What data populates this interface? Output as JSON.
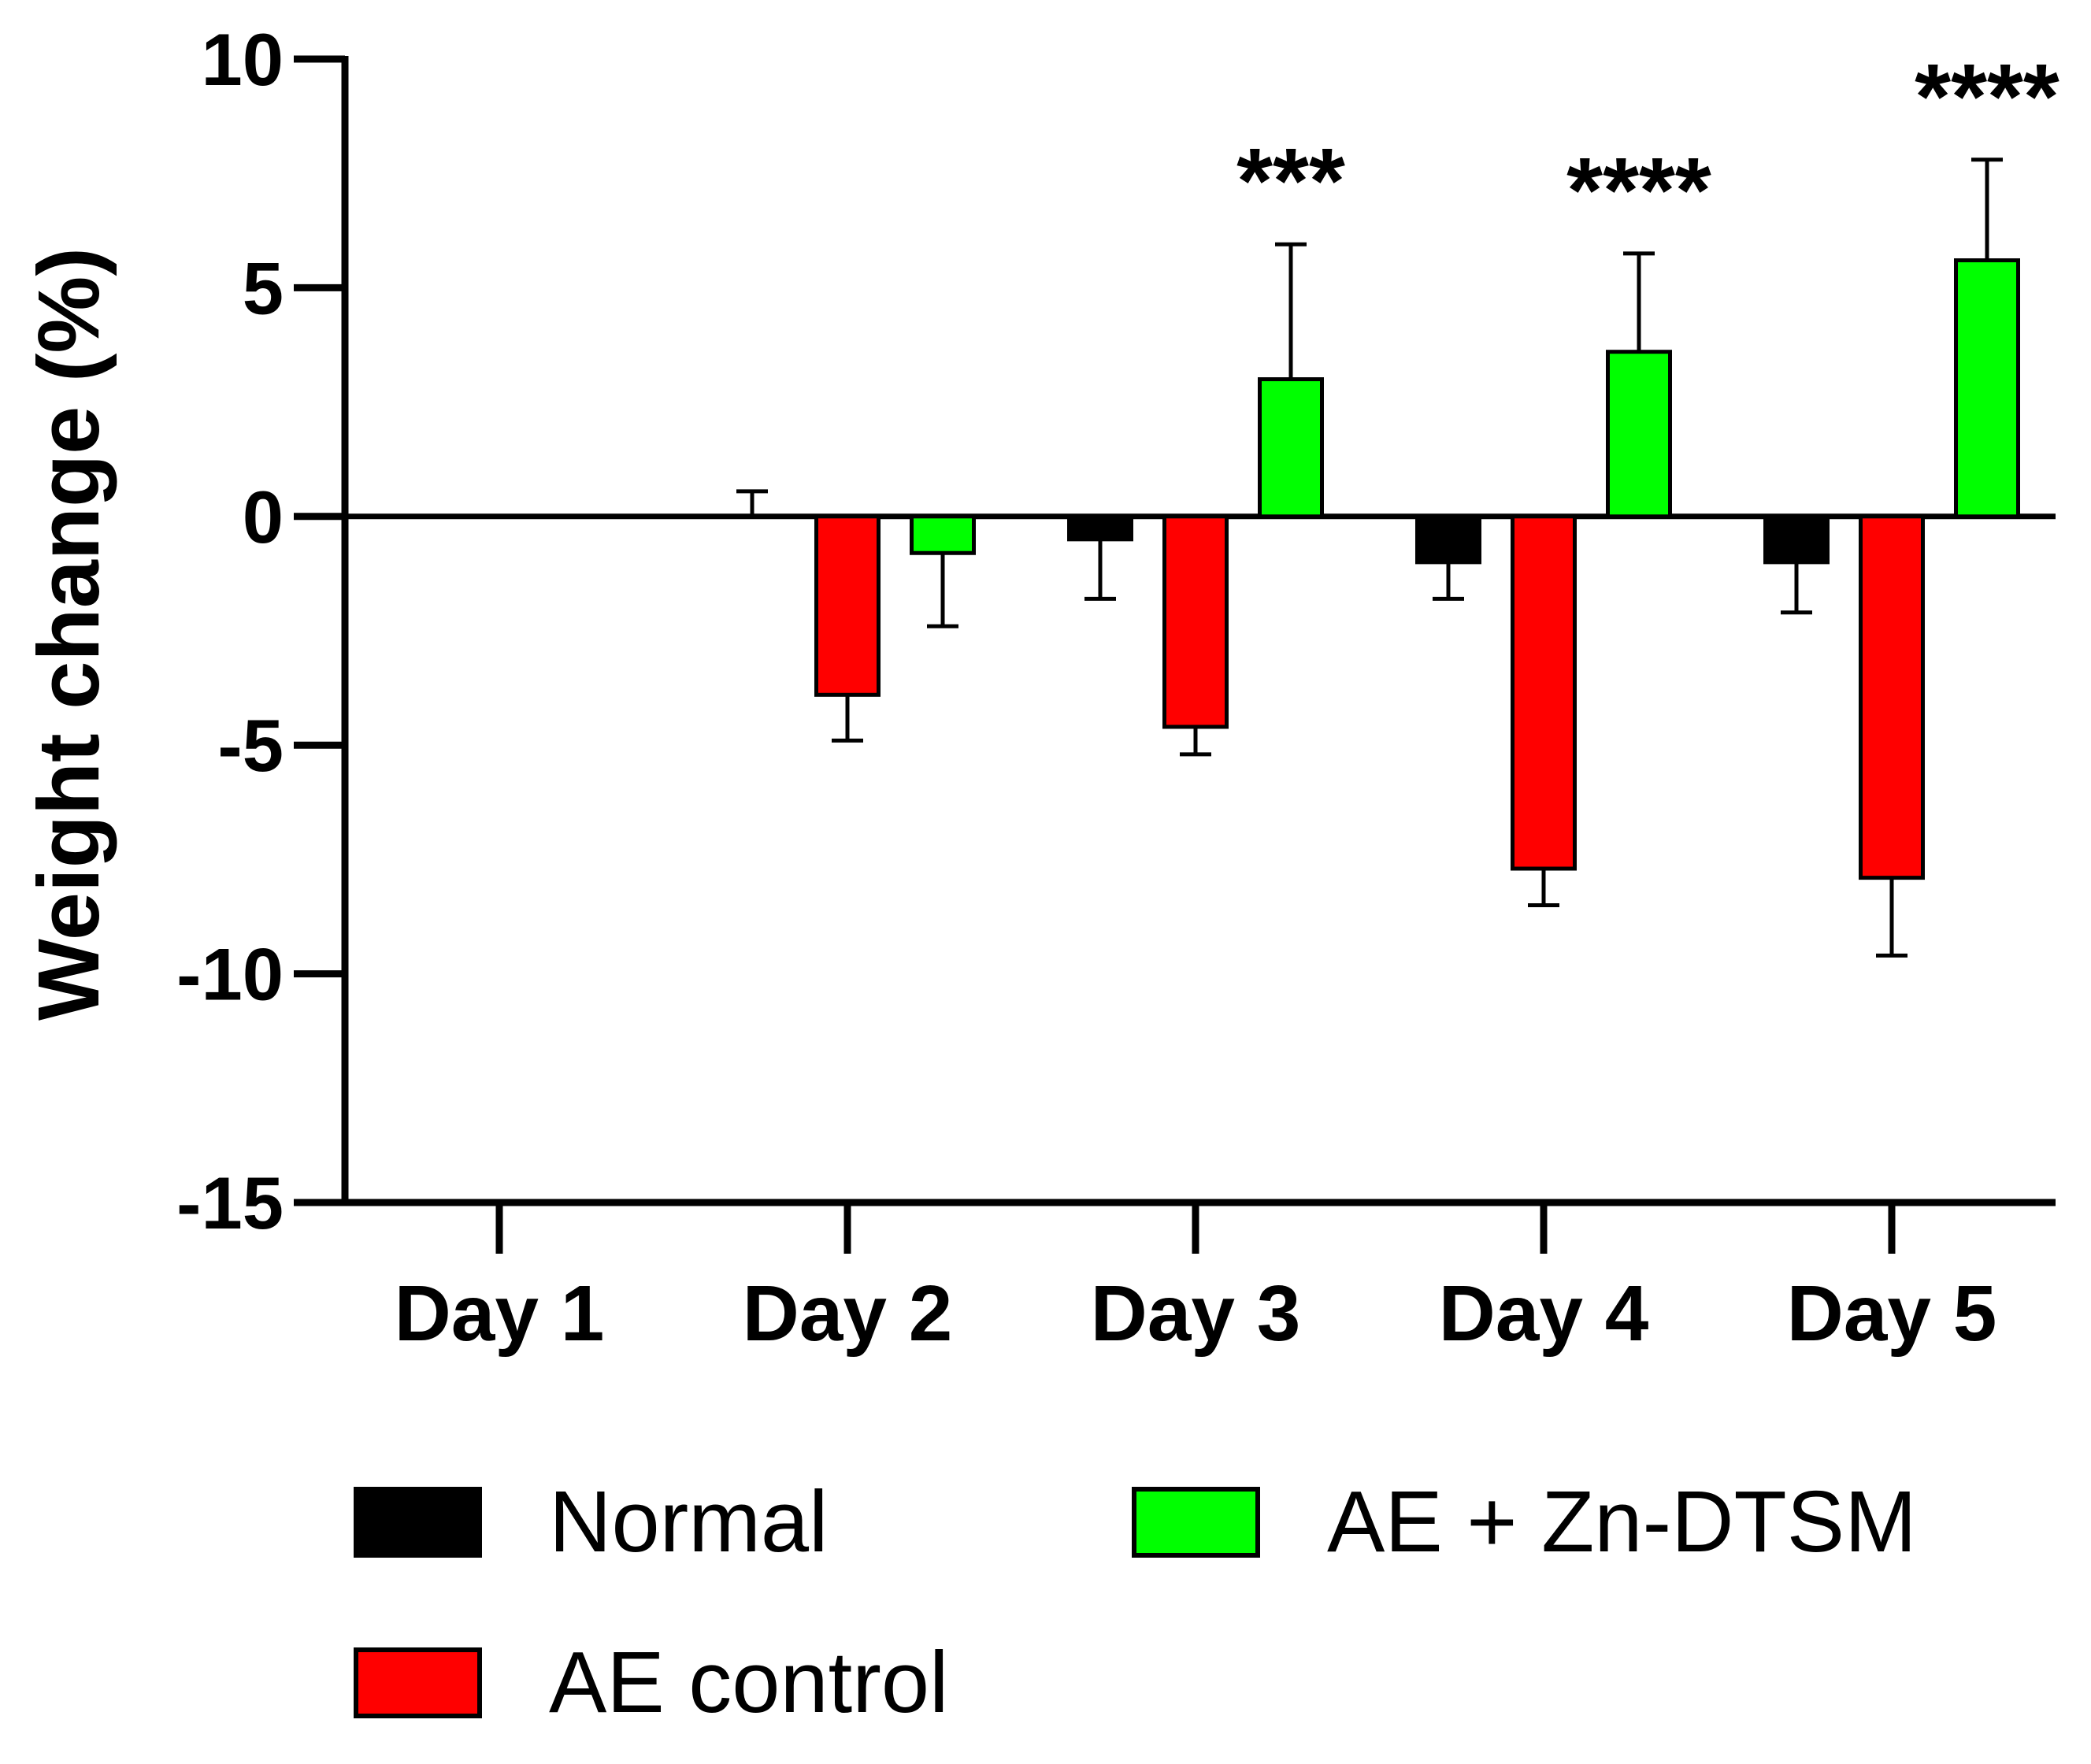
{
  "chart_data": {
    "type": "bar",
    "title": "",
    "xlabel": "",
    "ylabel": "Weight change (%)",
    "ylim": [
      -15,
      10
    ],
    "yticks": [
      10,
      5,
      0,
      -5,
      -10,
      -15
    ],
    "ytick_labels": [
      "10",
      "5",
      "0",
      "-5",
      "-10",
      "-15"
    ],
    "categories": [
      "Day 1",
      "Day 2",
      "Day 3",
      "Day 4",
      "Day 5"
    ],
    "series": [
      {
        "name": "Normal",
        "color": "#000000",
        "values": [
          0,
          0,
          -0.5,
          -1.0,
          -1.0
        ],
        "errors": [
          0,
          0.55,
          1.3,
          0.8,
          1.1
        ]
      },
      {
        "name": "AE control",
        "color": "#ff0000",
        "values": [
          0,
          -3.9,
          -4.6,
          -7.7,
          -7.9
        ],
        "errors": [
          0,
          1.0,
          0.6,
          0.8,
          1.7
        ]
      },
      {
        "name": "AE + Zn-DTSM",
        "color": "#00ff00",
        "values": [
          0,
          -0.8,
          3.0,
          3.6,
          5.6
        ],
        "errors": [
          0,
          1.6,
          2.95,
          2.15,
          2.2
        ]
      }
    ],
    "significance": [
      {
        "category": "Day 3",
        "series": "AE + Zn-DTSM",
        "label": "***"
      },
      {
        "category": "Day 4",
        "series": "AE + Zn-DTSM",
        "label": "****"
      },
      {
        "category": "Day 5",
        "series": "AE + Zn-DTSM",
        "label": "****"
      }
    ],
    "legend_position": "bottom"
  }
}
